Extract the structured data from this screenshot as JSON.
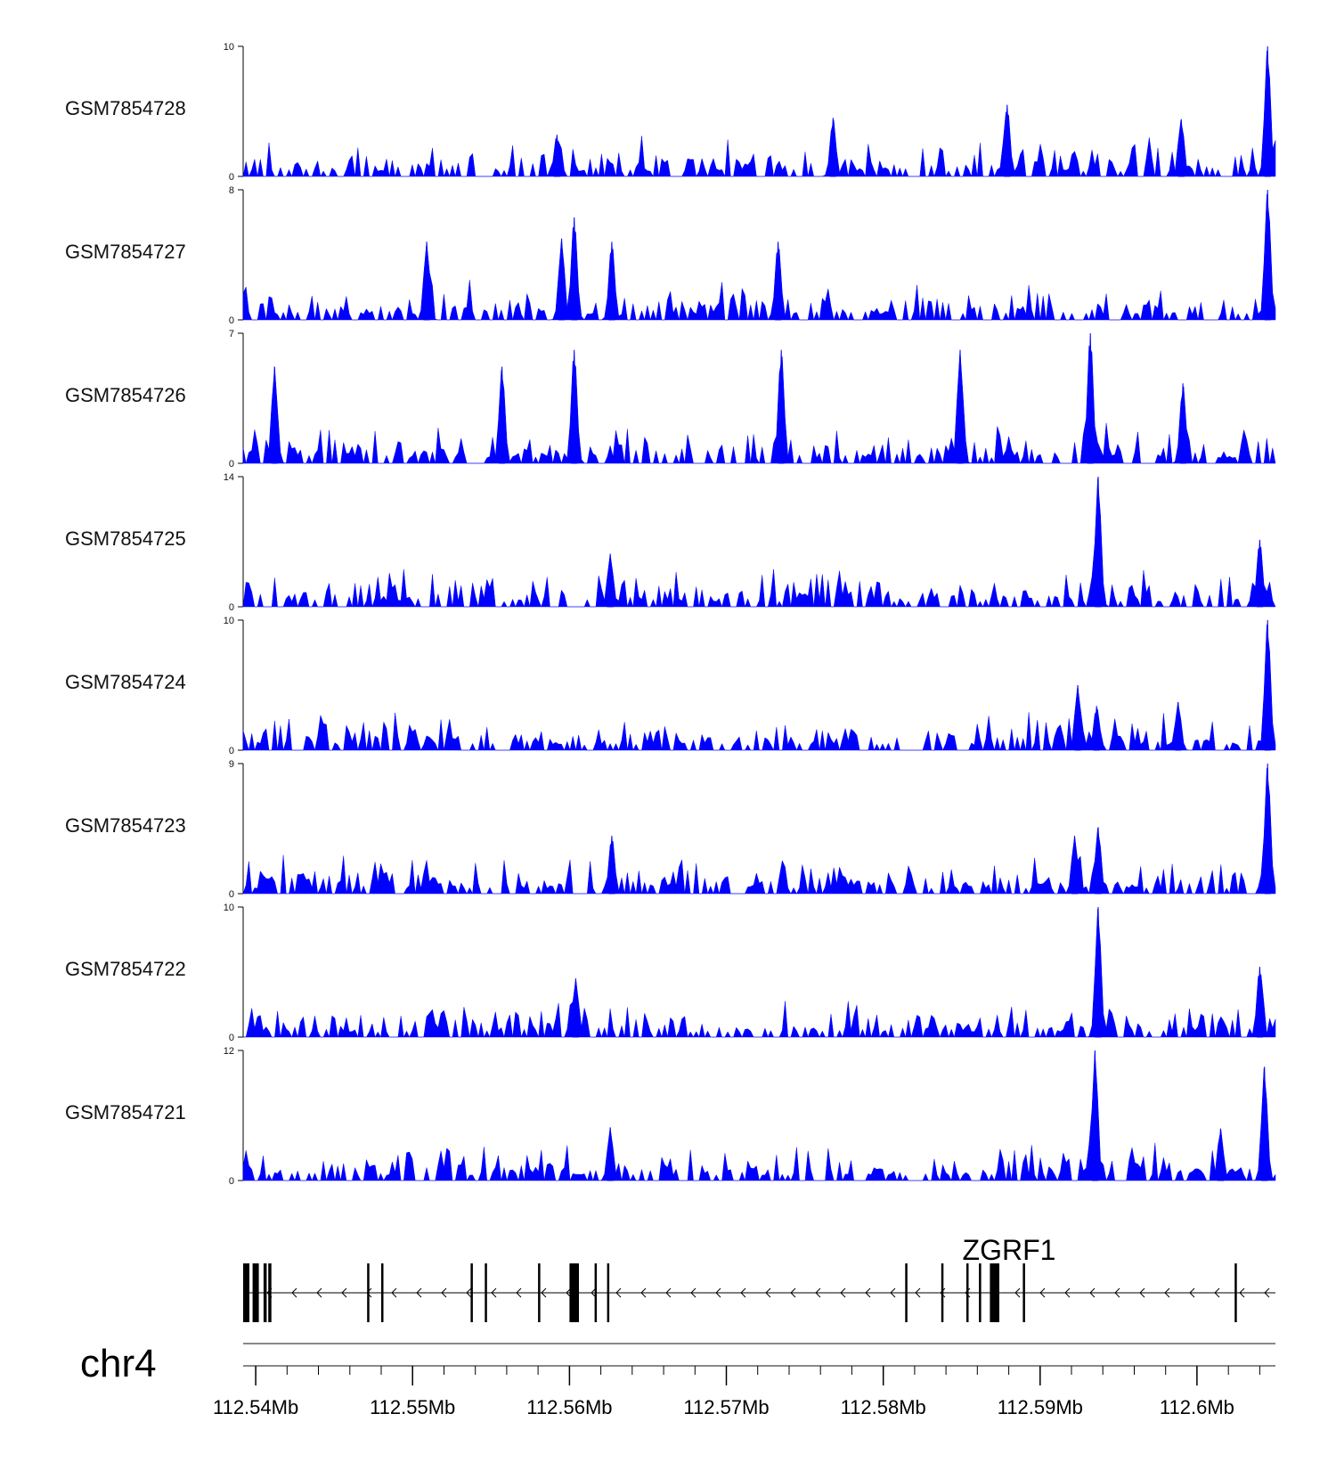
{
  "chart_data": {
    "type": "area",
    "title": "",
    "colors": {
      "signal": "#0000ff",
      "axis": "#000000",
      "gene": "#000000",
      "rule": "#888888"
    },
    "xlabel": "",
    "x_range_mb": [
      112.5392,
      112.605
    ],
    "xticks": [
      {
        "value": 112.54,
        "label": "112.54Mb"
      },
      {
        "value": 112.55,
        "label": "112.55Mb"
      },
      {
        "value": 112.56,
        "label": "112.56Mb"
      },
      {
        "value": 112.57,
        "label": "112.57Mb"
      },
      {
        "value": 112.58,
        "label": "112.58Mb"
      },
      {
        "value": 112.59,
        "label": "112.59Mb"
      },
      {
        "value": 112.6,
        "label": "112.6Mb"
      }
    ],
    "chromosome": "chr4",
    "gene": {
      "name": "ZGRF1",
      "strand": "-",
      "start_mb": 112.5392,
      "end_mb": 112.605,
      "exons_mb": [
        [
          112.5392,
          112.5396
        ],
        [
          112.5398,
          112.5402
        ],
        [
          112.5405,
          112.5407
        ],
        [
          112.5408,
          112.541
        ],
        [
          112.5471,
          112.5472
        ],
        [
          112.548,
          112.5481
        ],
        [
          112.5537,
          112.5538
        ],
        [
          112.5546,
          112.5547
        ],
        [
          112.558,
          112.5581
        ],
        [
          112.56,
          112.5606
        ],
        [
          112.5616,
          112.5617
        ],
        [
          112.5624,
          112.5625
        ],
        [
          112.5814,
          112.5815
        ],
        [
          112.5837,
          112.5838
        ],
        [
          112.5853,
          112.5854
        ],
        [
          112.5861,
          112.5862
        ],
        [
          112.5868,
          112.5874
        ],
        [
          112.5889,
          112.589
        ],
        [
          112.6024,
          112.6025
        ]
      ]
    },
    "tracks": [
      {
        "name": "GSM7854728",
        "ylim": [
          0,
          10
        ],
        "peaks": [
          [
            112.5592,
            3.2
          ],
          [
            112.5768,
            4.5
          ],
          [
            112.5879,
            5.5
          ],
          [
            112.599,
            4.4
          ],
          [
            112.6045,
            10.0
          ]
        ]
      },
      {
        "name": "GSM7854727",
        "ylim": [
          0,
          8
        ],
        "peaks": [
          [
            112.5509,
            4.8
          ],
          [
            112.5595,
            5.0
          ],
          [
            112.5603,
            6.3
          ],
          [
            112.5627,
            4.8
          ],
          [
            112.5733,
            4.8
          ],
          [
            112.6045,
            8.0
          ]
        ]
      },
      {
        "name": "GSM7854726",
        "ylim": [
          0,
          7
        ],
        "peaks": [
          [
            112.5412,
            5.2
          ],
          [
            112.5557,
            5.2
          ],
          [
            112.5603,
            6.1
          ],
          [
            112.5735,
            6.1
          ],
          [
            112.5849,
            6.1
          ],
          [
            112.5932,
            7.0
          ],
          [
            112.5991,
            4.3
          ]
        ]
      },
      {
        "name": "GSM7854725",
        "ylim": [
          0,
          14
        ],
        "peaks": [
          [
            112.5626,
            5.7
          ],
          [
            112.5937,
            14.0
          ],
          [
            112.604,
            7.2
          ]
        ]
      },
      {
        "name": "GSM7854724",
        "ylim": [
          0,
          10
        ],
        "peaks": [
          [
            112.5924,
            5.0
          ],
          [
            112.5936,
            3.4
          ],
          [
            112.5988,
            3.7
          ],
          [
            112.6045,
            10.0
          ]
        ]
      },
      {
        "name": "GSM7854723",
        "ylim": [
          0,
          9
        ],
        "peaks": [
          [
            112.5627,
            4.0
          ],
          [
            112.5922,
            4.0
          ],
          [
            112.5937,
            4.6
          ],
          [
            112.6045,
            9.0
          ]
        ]
      },
      {
        "name": "GSM7854722",
        "ylim": [
          0,
          10
        ],
        "peaks": [
          [
            112.5604,
            4.5
          ],
          [
            112.5937,
            10.0
          ],
          [
            112.604,
            5.4
          ]
        ]
      },
      {
        "name": "GSM7854721",
        "ylim": [
          0,
          12
        ],
        "peaks": [
          [
            112.5626,
            4.9
          ],
          [
            112.5935,
            12.0
          ],
          [
            112.6015,
            4.8
          ],
          [
            112.6043,
            10.5
          ]
        ]
      }
    ]
  }
}
